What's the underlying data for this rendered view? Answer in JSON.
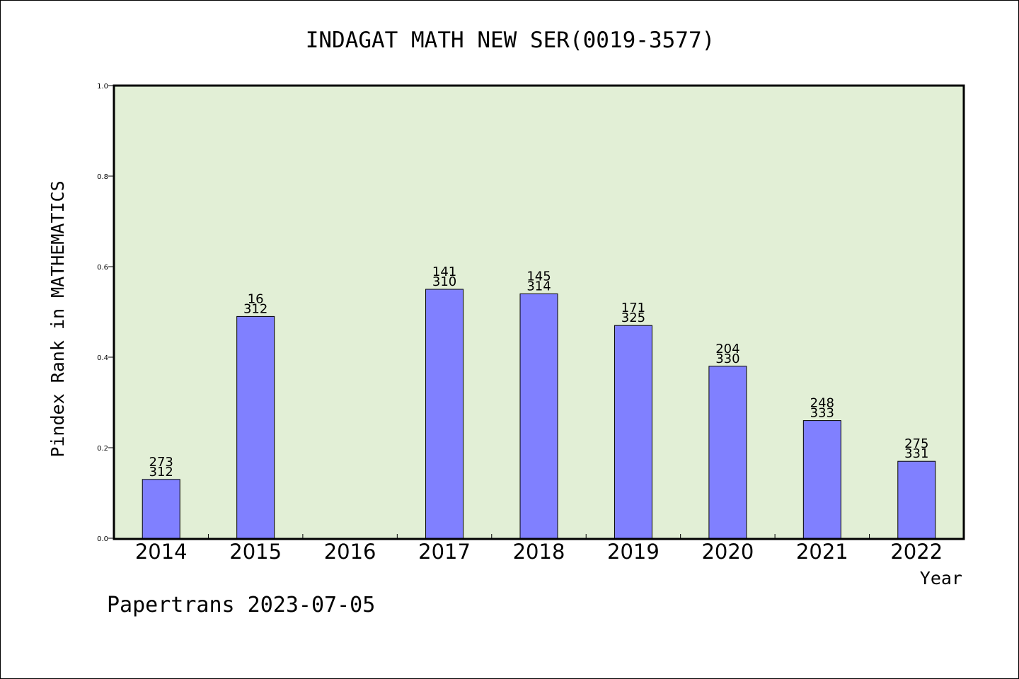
{
  "chart_data": {
    "type": "bar",
    "title": "INDAGAT MATH NEW SER(0019-3577)",
    "xlabel": "Year",
    "ylabel": "Pindex Rank in MATHEMATICS",
    "ylim": [
      0,
      1.0
    ],
    "yticks": [
      "0.0",
      "0.2",
      "0.4",
      "0.6",
      "0.8",
      "1.0"
    ],
    "grid": false,
    "plot_background": "#e2efd6",
    "bar_color": "#8080ff",
    "categories": [
      "2014",
      "2015",
      "2016",
      "2017",
      "2018",
      "2019",
      "2020",
      "2021",
      "2022"
    ],
    "values": [
      0.13,
      0.49,
      null,
      0.55,
      0.54,
      0.47,
      0.38,
      0.26,
      0.17
    ],
    "labels_top": [
      "273",
      "16",
      "",
      "141",
      "145",
      "171",
      "204",
      "248",
      "275"
    ],
    "labels_bottom": [
      "312",
      "312",
      "",
      "310",
      "314",
      "325",
      "330",
      "333",
      "331"
    ]
  },
  "footer": "Papertrans 2023-07-05"
}
